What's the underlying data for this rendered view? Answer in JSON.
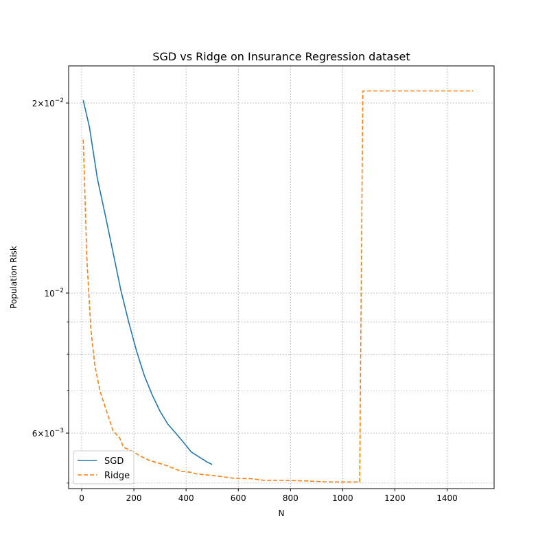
{
  "chart_data": {
    "type": "line",
    "title": "SGD vs Ridge on Insurance Regression dataset",
    "xlabel": "N",
    "ylabel": "Population Risk",
    "xlim": [
      -50,
      1580
    ],
    "ylim": [
      0.0049,
      0.0229
    ],
    "yscale": "log",
    "grid": true,
    "legend_position": "lower-left",
    "xticks": [
      0,
      200,
      400,
      600,
      800,
      1000,
      1200,
      1400
    ],
    "yticks_major": [
      {
        "value": 0.006,
        "mantissa": "6",
        "exp": "−3"
      },
      {
        "value": 0.01,
        "mantissa": "",
        "exp": "−2"
      },
      {
        "value": 0.02,
        "mantissa": "2",
        "exp": "−2"
      }
    ],
    "yticks_minor": [
      0.005,
      0.007,
      0.008,
      0.009
    ],
    "series": [
      {
        "name": "SGD",
        "color": "#1f77b4",
        "dash": "solid",
        "x": [
          6,
          30,
          60,
          90,
          120,
          150,
          180,
          210,
          240,
          270,
          300,
          330,
          360,
          390,
          420,
          450,
          480,
          500
        ],
        "y": [
          0.0202,
          0.0183,
          0.0152,
          0.0133,
          0.0116,
          0.0101,
          0.009,
          0.0081,
          0.0074,
          0.0069,
          0.0065,
          0.0062,
          0.006,
          0.0058,
          0.0056,
          0.0055,
          0.0054,
          0.00535
        ]
      },
      {
        "name": "Ridge",
        "color": "#ff7f0e",
        "dash": "dashed",
        "x": [
          6,
          10,
          20,
          35,
          50,
          70,
          90,
          120,
          145,
          160,
          200,
          220,
          260,
          300,
          330,
          380,
          420,
          440,
          480,
          520,
          580,
          650,
          700,
          780,
          850,
          900,
          950,
          1000,
          1065,
          1077,
          1100,
          1200,
          1300,
          1400,
          1500
        ],
        "y": [
          0.0175,
          0.0155,
          0.0113,
          0.0088,
          0.0077,
          0.007,
          0.0066,
          0.00605,
          0.0059,
          0.0057,
          0.0056,
          0.00553,
          0.00543,
          0.00537,
          0.00532,
          0.00522,
          0.0052,
          0.00517,
          0.00515,
          0.00513,
          0.00509,
          0.00508,
          0.00505,
          0.00505,
          0.00504,
          0.00503,
          0.00502,
          0.00502,
          0.00502,
          0.0209,
          0.0209,
          0.0209,
          0.0209,
          0.0209,
          0.0209
        ]
      }
    ]
  }
}
